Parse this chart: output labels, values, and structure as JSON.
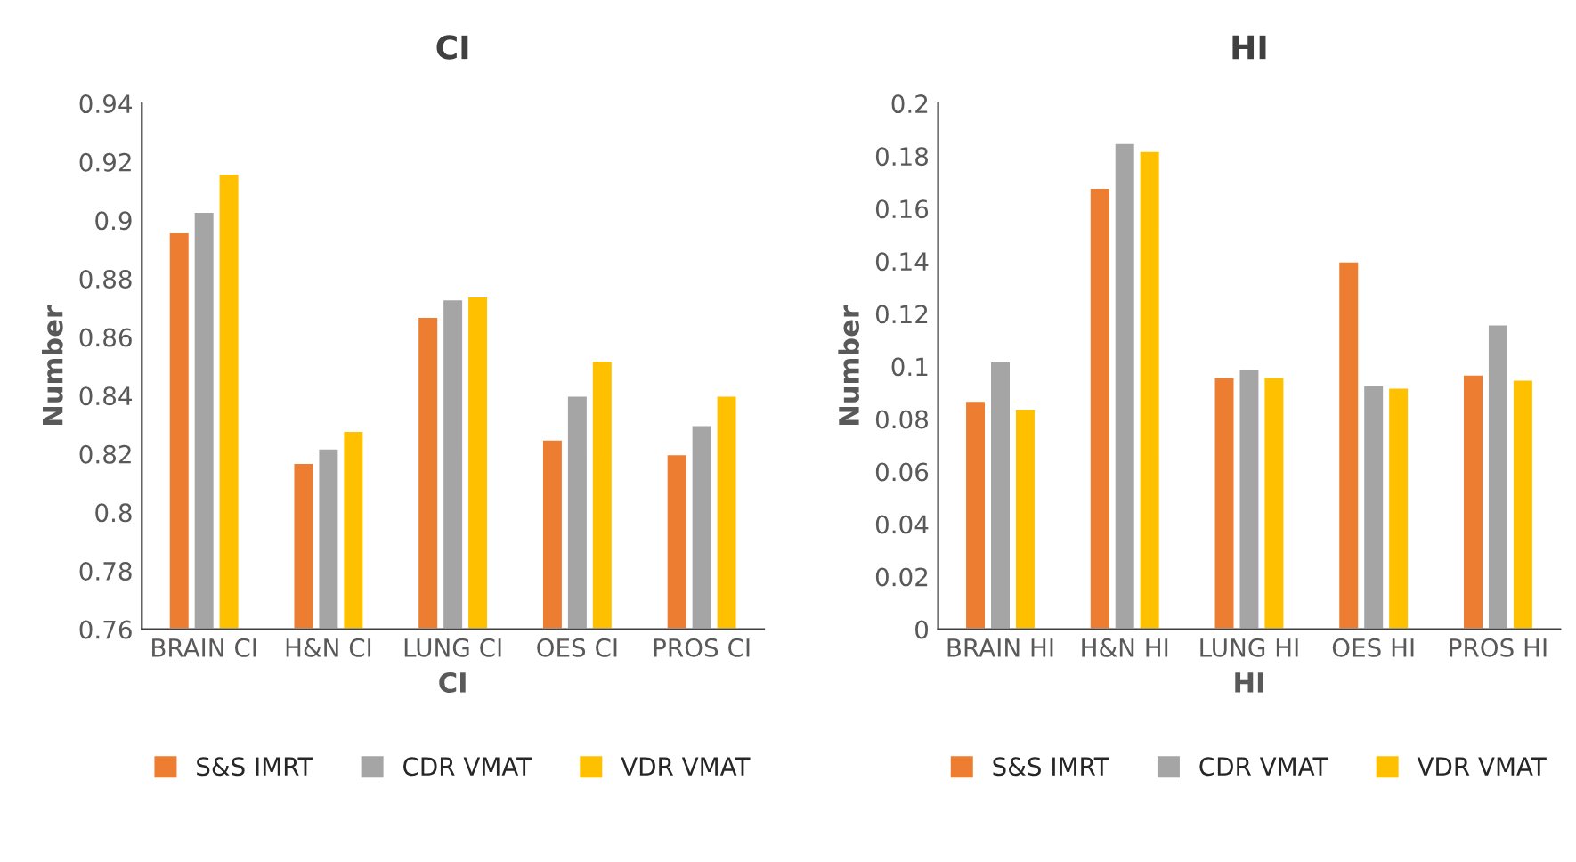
{
  "chart_data": [
    {
      "type": "bar",
      "title": "CI",
      "xlabel": "CI",
      "ylabel": "Number",
      "categories": [
        "BRAIN CI",
        "H&N CI",
        "LUNG CI",
        "OES CI",
        "PROS CI"
      ],
      "series": [
        {
          "name": "S&S IMRT",
          "color": "#ed7d31",
          "values": [
            0.896,
            0.817,
            0.867,
            0.825,
            0.82
          ]
        },
        {
          "name": "CDR VMAT",
          "color": "#a5a5a5",
          "values": [
            0.903,
            0.822,
            0.873,
            0.84,
            0.83
          ]
        },
        {
          "name": "VDR VMAT",
          "color": "#ffc000",
          "values": [
            0.916,
            0.828,
            0.874,
            0.852,
            0.84
          ]
        }
      ],
      "ylim": [
        0.76,
        0.94
      ],
      "yticks": [
        0.76,
        0.78,
        0.8,
        0.82,
        0.84,
        0.86,
        0.88,
        0.9,
        0.92,
        0.94
      ],
      "grid": false,
      "legend": "bottom"
    },
    {
      "type": "bar",
      "title": "HI",
      "xlabel": "HI",
      "ylabel": "Number",
      "categories": [
        "BRAIN HI",
        "H&N HI",
        "LUNG HI",
        "OES HI",
        "PROS HI"
      ],
      "series": [
        {
          "name": "S&S IMRT",
          "color": "#ed7d31",
          "values": [
            0.087,
            0.168,
            0.096,
            0.14,
            0.097
          ]
        },
        {
          "name": "CDR VMAT",
          "color": "#a5a5a5",
          "values": [
            0.102,
            0.185,
            0.099,
            0.093,
            0.116
          ]
        },
        {
          "name": "VDR VMAT",
          "color": "#ffc000",
          "values": [
            0.084,
            0.182,
            0.096,
            0.092,
            0.095
          ]
        }
      ],
      "ylim": [
        0,
        0.2
      ],
      "yticks": [
        0,
        0.02,
        0.04,
        0.06,
        0.08,
        0.1,
        0.12,
        0.14,
        0.16,
        0.18,
        0.2
      ],
      "grid": false,
      "legend": "bottom"
    }
  ]
}
